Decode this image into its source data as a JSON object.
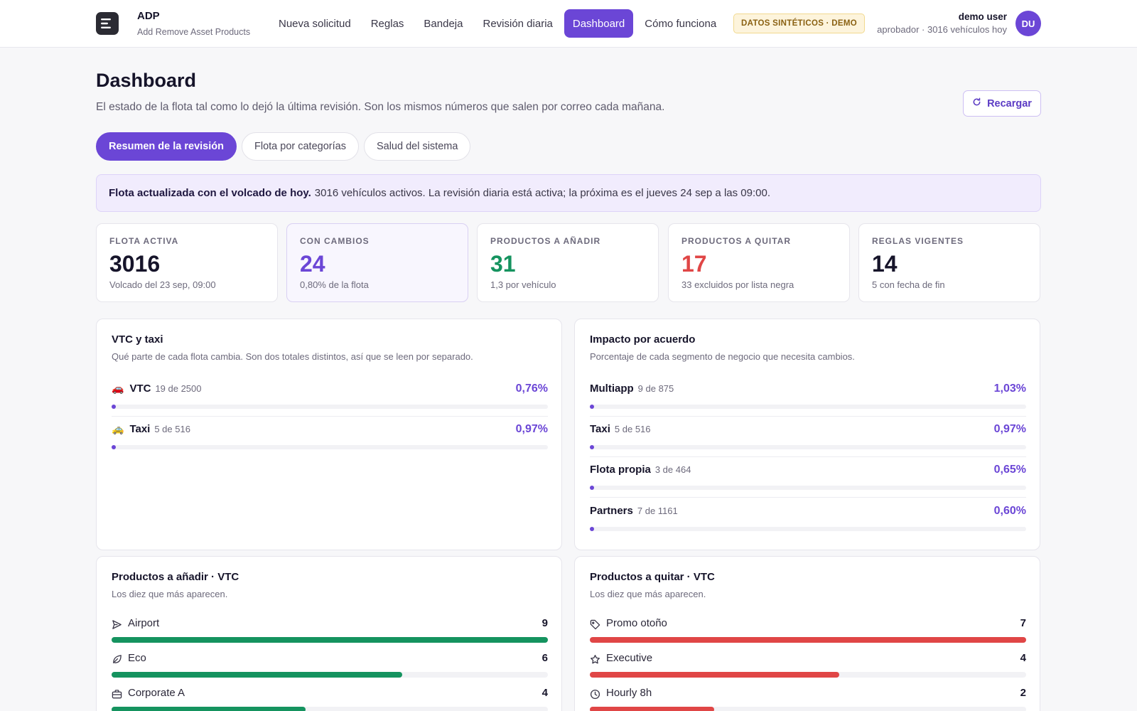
{
  "app": {
    "brand": "ADP",
    "brand_sub": "Add Remove Asset Products",
    "nav": [
      "Nueva solicitud",
      "Reglas",
      "Bandeja",
      "Revisión diaria",
      "Dashboard",
      "Cómo funciona"
    ],
    "active_nav": "Dashboard",
    "demo_badge": "DATOS SINTÉTICOS · DEMO",
    "user_name": "demo user",
    "user_sub": "aprobador · 3016 vehículos hoy",
    "avatar": "DU",
    "accent_color": "#6b46d6"
  },
  "page": {
    "title": "Dashboard",
    "subtitle": "El estado de la flota tal como lo dejó la última revisión. Son los mismos números que salen por correo cada mañana.",
    "reload_label": "Recargar",
    "reload_icon": "refresh-icon"
  },
  "tabs": [
    "Resumen de la revisión",
    "Flota por categorías",
    "Salud del sistema"
  ],
  "active_tab": "Resumen de la revisión",
  "banner": {
    "bold": "Flota actualizada con el volcado de hoy.",
    "text": "3016 vehículos activos. La revisión diaria está activa; la próxima es el jueves 24 sep a las 09:00."
  },
  "stats": [
    {
      "label": "FLOTA ACTIVA",
      "value": "3016",
      "note": "Volcado del 23 sep, 09:00",
      "color": "#16142a"
    },
    {
      "label": "CON CAMBIOS",
      "value": "24",
      "note": "0,80% de la flota",
      "color": "#6b46d6"
    },
    {
      "label": "PRODUCTOS A AÑADIR",
      "value": "31",
      "note": "1,3 por vehículo",
      "color": "#15935f"
    },
    {
      "label": "PRODUCTOS A QUITAR",
      "value": "17",
      "note": "33 excluidos por lista negra",
      "color": "#e04646"
    },
    {
      "label": "REGLAS VIGENTES",
      "value": "14",
      "note": "5 con fecha de fin",
      "color": "#16142a"
    }
  ],
  "vtc_taxi": {
    "title": "VTC y taxi",
    "subtitle": "Qué parte de cada flota cambia. Son dos totales distintos, así que se leen por separado.",
    "rows": [
      {
        "emoji": "🚗",
        "label": "VTC",
        "count": "19 de 2500",
        "pct": "0,76%",
        "value": 0.0076
      },
      {
        "emoji": "🚕",
        "label": "Taxi",
        "count": "5 de 516",
        "pct": "0,97%",
        "value": 0.0097
      }
    ]
  },
  "impacto": {
    "title": "Impacto por acuerdo",
    "subtitle": "Porcentaje de cada segmento de negocio que necesita cambios.",
    "rows": [
      {
        "label": "Multiapp",
        "count": "9 de 875",
        "pct": "1,03%",
        "value": 0.0103
      },
      {
        "label": "Taxi",
        "count": "5 de 516",
        "pct": "0,97%",
        "value": 0.0097
      },
      {
        "label": "Flota propia",
        "count": "3 de 464",
        "pct": "0,65%",
        "value": 0.0065
      },
      {
        "label": "Partners",
        "count": "7 de 1161",
        "pct": "0,60%",
        "value": 0.006
      }
    ]
  },
  "add_products": {
    "title": "Productos a añadir · VTC",
    "subtitle": "Los diez que más aparecen.",
    "color": "#15935f",
    "max": 9,
    "rows": [
      {
        "icon": "plane-icon",
        "label": "Airport",
        "value": 9
      },
      {
        "icon": "leaf-icon",
        "label": "Eco",
        "value": 6
      },
      {
        "icon": "briefcase-icon",
        "label": "Corporate A",
        "value": 4
      }
    ]
  },
  "remove_products": {
    "title": "Productos a quitar · VTC",
    "subtitle": "Los diez que más aparecen.",
    "color": "#e04646",
    "max": 7,
    "rows": [
      {
        "icon": "tag-icon",
        "label": "Promo otoño",
        "value": 7
      },
      {
        "icon": "star-icon",
        "label": "Executive",
        "value": 4
      },
      {
        "icon": "clock-icon",
        "label": "Hourly 8h",
        "value": 2
      }
    ]
  }
}
